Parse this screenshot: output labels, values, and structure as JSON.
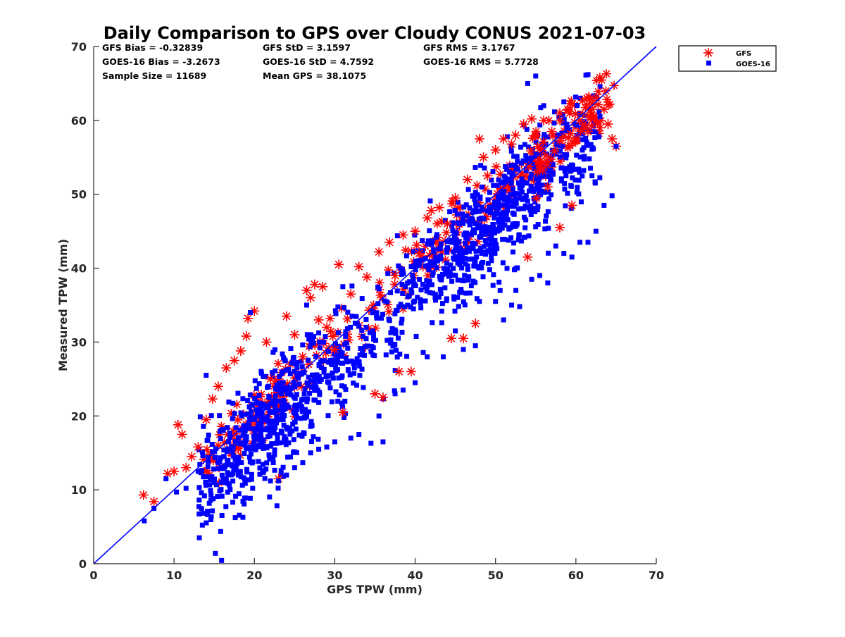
{
  "chart_data": {
    "type": "scatter",
    "title": "Daily Comparison to GPS over Cloudy CONUS 2021-07-03",
    "xlabel": "GPS TPW (mm)",
    "ylabel": "Measured TPW (mm)",
    "xlim": [
      0,
      70
    ],
    "ylim": [
      0,
      70
    ],
    "x_ticks": [
      "0",
      "10",
      "20",
      "30",
      "40",
      "50",
      "60",
      "70"
    ],
    "y_ticks": [
      "0",
      "10",
      "20",
      "30",
      "40",
      "50",
      "60",
      "70"
    ],
    "grid": false,
    "legend_position": "outside-top-right",
    "reference_line": {
      "name": "1:1",
      "x": [
        0,
        70
      ],
      "y": [
        0,
        70
      ],
      "color": "#0000ff"
    },
    "stats": {
      "gfs_bias": "GFS Bias = -0.32839",
      "gfs_std": "GFS StD = 3.1597",
      "gfs_rms": "GFS RMS = 3.1767",
      "goes_bias": "GOES-16 Bias = -3.2673",
      "goes_std": "GOES-16 StD = 4.7592",
      "goes_rms": "GOES-16 RMS = 5.7728",
      "sample_size": "Sample Size = 11689",
      "mean_gps": "Mean GPS = 38.1075"
    },
    "series": [
      {
        "name": "GFS",
        "marker": "asterisk",
        "color": "#ff0000",
        "sample_size": 11689,
        "mean_x": 38.1075,
        "bias": -0.32839,
        "std": 3.1597,
        "x_range": [
          6.2,
          65.0
        ],
        "points": [
          [
            6.2,
            9.3
          ],
          [
            7.5,
            8.4
          ],
          [
            9.2,
            12.2
          ],
          [
            10.0,
            12.5
          ],
          [
            10.5,
            18.8
          ],
          [
            11.0,
            17.5
          ],
          [
            11.5,
            13.0
          ],
          [
            12.2,
            14.5
          ],
          [
            13.0,
            15.8
          ],
          [
            14.0,
            19.5
          ],
          [
            14.8,
            22.3
          ],
          [
            15.5,
            24.0
          ],
          [
            16.5,
            26.5
          ],
          [
            17.5,
            27.5
          ],
          [
            18.3,
            28.8
          ],
          [
            19.0,
            30.8
          ],
          [
            19.2,
            33.2
          ],
          [
            20.0,
            34.2
          ],
          [
            21.5,
            30.0
          ],
          [
            22.0,
            25.0
          ],
          [
            23.0,
            11.5
          ],
          [
            24.0,
            33.5
          ],
          [
            25.0,
            31.0
          ],
          [
            26.0,
            28.0
          ],
          [
            26.5,
            37.0
          ],
          [
            27.0,
            36.0
          ],
          [
            27.5,
            37.8
          ],
          [
            28.0,
            33.0
          ],
          [
            28.5,
            37.5
          ],
          [
            29.0,
            32.0
          ],
          [
            30.0,
            29.0
          ],
          [
            30.5,
            40.5
          ],
          [
            31.0,
            20.5
          ],
          [
            32.0,
            36.5
          ],
          [
            33.0,
            40.2
          ],
          [
            34.0,
            38.8
          ],
          [
            35.0,
            23.0
          ],
          [
            35.5,
            42.2
          ],
          [
            36.0,
            22.5
          ],
          [
            36.8,
            43.5
          ],
          [
            37.5,
            39.0
          ],
          [
            38.0,
            26.0
          ],
          [
            38.5,
            44.5
          ],
          [
            39.5,
            26.0
          ],
          [
            40.0,
            45.0
          ],
          [
            40.5,
            42.0
          ],
          [
            41.5,
            46.8
          ],
          [
            42.0,
            47.8
          ],
          [
            43.0,
            48.2
          ],
          [
            44.0,
            46.0
          ],
          [
            44.5,
            30.5
          ],
          [
            45.0,
            49.5
          ],
          [
            46.0,
            30.5
          ],
          [
            46.5,
            52.0
          ],
          [
            47.5,
            32.5
          ],
          [
            48.0,
            57.5
          ],
          [
            48.5,
            55.0
          ],
          [
            49.0,
            52.5
          ],
          [
            50.0,
            56.0
          ],
          [
            51.0,
            57.5
          ],
          [
            52.0,
            56.8
          ],
          [
            52.5,
            58.0
          ],
          [
            53.5,
            59.5
          ],
          [
            54.0,
            41.5
          ],
          [
            54.5,
            60.2
          ],
          [
            55.0,
            58.0
          ],
          [
            56.0,
            60.0
          ],
          [
            57.0,
            58.5
          ],
          [
            58.0,
            61.0
          ],
          [
            59.0,
            61.5
          ],
          [
            60.0,
            57.5
          ],
          [
            60.5,
            60.0
          ],
          [
            61.0,
            59.5
          ],
          [
            61.5,
            58.5
          ],
          [
            62.0,
            61.5
          ],
          [
            62.5,
            60.0
          ],
          [
            63.0,
            59.0
          ],
          [
            63.5,
            61.5
          ],
          [
            64.0,
            59.5
          ],
          [
            64.5,
            57.5
          ],
          [
            65.0,
            56.5
          ],
          [
            59.5,
            48.5
          ],
          [
            58.0,
            45.5
          ],
          [
            56.5,
            51.0
          ]
        ]
      },
      {
        "name": "GOES-16",
        "marker": "square",
        "color": "#0000ff",
        "sample_size": 11689,
        "mean_x": 38.1075,
        "bias": -3.2673,
        "std": 4.7592,
        "x_range": [
          6.3,
          65.0
        ],
        "points": [
          [
            6.3,
            5.8
          ],
          [
            7.5,
            7.5
          ],
          [
            9.0,
            11.5
          ],
          [
            10.3,
            9.7
          ],
          [
            11.5,
            10.2
          ],
          [
            13.0,
            12.5
          ],
          [
            14.0,
            25.5
          ],
          [
            15.0,
            11.0
          ],
          [
            16.5,
            11.2
          ],
          [
            18.0,
            12.0
          ],
          [
            19.5,
            34.0
          ],
          [
            21.0,
            12.5
          ],
          [
            22.0,
            11.2
          ],
          [
            23.0,
            11.2
          ],
          [
            24.0,
            12.0
          ],
          [
            25.0,
            13.0
          ],
          [
            26.5,
            35.0
          ],
          [
            27.0,
            15.0
          ],
          [
            28.0,
            15.5
          ],
          [
            29.0,
            15.8
          ],
          [
            30.0,
            16.5
          ],
          [
            31.0,
            37.5
          ],
          [
            32.0,
            17.0
          ],
          [
            33.0,
            17.5
          ],
          [
            34.5,
            16.3
          ],
          [
            35.5,
            20.0
          ],
          [
            36.0,
            16.5
          ],
          [
            37.5,
            23.0
          ],
          [
            38.5,
            23.5
          ],
          [
            40.0,
            24.5
          ],
          [
            41.5,
            28.0
          ],
          [
            43.5,
            28.0
          ],
          [
            45.0,
            31.5
          ],
          [
            46.0,
            29.0
          ],
          [
            47.5,
            29.5
          ],
          [
            48.0,
            35.5
          ],
          [
            50.0,
            35.5
          ],
          [
            51.0,
            33.0
          ],
          [
            52.0,
            35.0
          ],
          [
            53.0,
            34.8
          ],
          [
            54.5,
            38.5
          ],
          [
            55.5,
            39.0
          ],
          [
            56.5,
            38.0
          ],
          [
            57.5,
            43.0
          ],
          [
            58.5,
            42.0
          ],
          [
            59.5,
            41.5
          ],
          [
            60.5,
            43.5
          ],
          [
            61.5,
            43.5
          ],
          [
            62.5,
            45.0
          ],
          [
            63.5,
            48.5
          ],
          [
            64.5,
            49.8
          ],
          [
            65.0,
            56.5
          ],
          [
            55.0,
            66.0
          ],
          [
            54.0,
            65.0
          ],
          [
            56.0,
            62.0
          ],
          [
            58.5,
            62.5
          ],
          [
            63.0,
            60.5
          ],
          [
            62.0,
            52.5
          ]
        ]
      }
    ]
  },
  "legend": {
    "items": [
      {
        "label": "GFS",
        "marker": "asterisk",
        "color": "#ff0000"
      },
      {
        "label": "GOES-16",
        "marker": "square",
        "color": "#0000ff"
      }
    ]
  }
}
